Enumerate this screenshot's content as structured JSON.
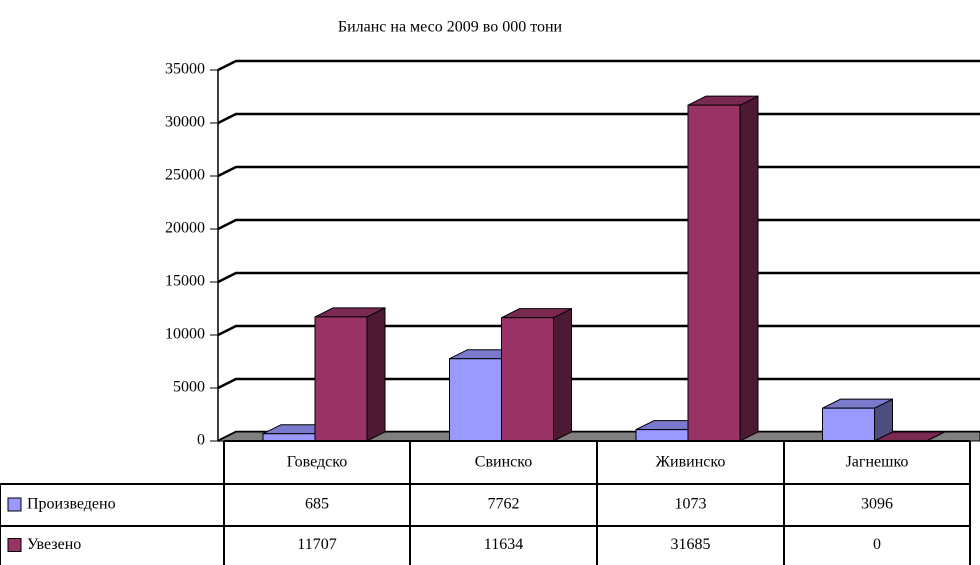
{
  "chart_data": {
    "type": "bar3d",
    "title": "Биланс на месо 2009 во 000 тони",
    "categories": [
      "Говедско",
      "Свинско",
      "Живинско",
      "Јагнешко"
    ],
    "series": [
      {
        "name": "Произведено",
        "color": "#9999ff",
        "values": [
          685,
          7762,
          1073,
          3096
        ]
      },
      {
        "name": "Увезено",
        "color": "#993366",
        "values": [
          11707,
          11634,
          31685,
          0
        ]
      }
    ],
    "ylim": [
      0,
      35000
    ],
    "yticks": [
      0,
      5000,
      10000,
      15000,
      20000,
      25000,
      30000,
      35000
    ],
    "grid": true
  }
}
